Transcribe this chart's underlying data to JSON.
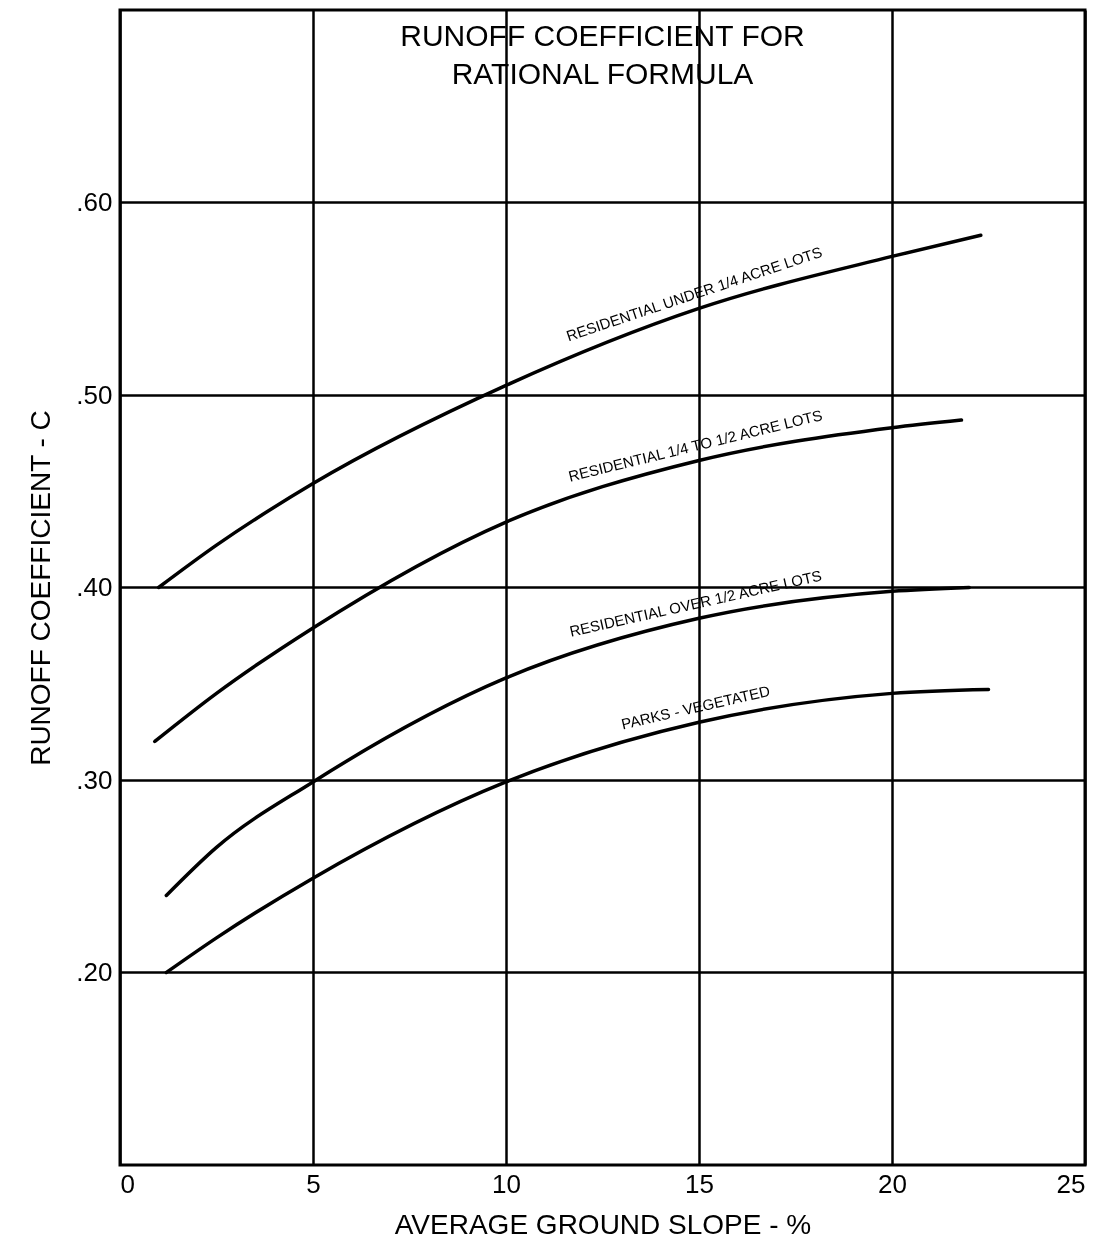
{
  "chart_data": {
    "type": "line",
    "title": [
      "RUNOFF COEFFICIENT FOR",
      "RATIONAL FORMULA"
    ],
    "xlabel": "AVERAGE GROUND SLOPE - %",
    "ylabel": "RUNOFF COEFFICIENT - C",
    "series": [
      {
        "name": "RESIDENTIAL   UNDER 1/4 ACRE LOTS",
        "color": "#000000",
        "x": [
          1,
          2.5,
          5,
          10,
          15,
          20,
          22.3
        ],
        "values": [
          0.4,
          0.422,
          0.454,
          0.505,
          0.545,
          0.572,
          0.583
        ]
      },
      {
        "name": "RESIDENTIAL   1/4 TO 1/2 ACRE LOTS",
        "color": "#000000",
        "x": [
          0.9,
          2.5,
          5,
          10,
          15,
          20,
          21.8
        ],
        "values": [
          0.32,
          0.345,
          0.379,
          0.434,
          0.466,
          0.483,
          0.487
        ]
      },
      {
        "name": "RESIDENTIAL   OVER 1/2 ACRE LOTS",
        "color": "#000000",
        "x": [
          1.2,
          2.5,
          5,
          10,
          15,
          20,
          22
        ],
        "values": [
          0.24,
          0.265,
          0.299,
          0.353,
          0.384,
          0.398,
          0.4
        ]
      },
      {
        "name": "PARKS - VEGETATED",
        "color": "#000000",
        "x": [
          1.2,
          2.5,
          5,
          10,
          15,
          20,
          22.5
        ],
        "values": [
          0.2,
          0.218,
          0.249,
          0.299,
          0.33,
          0.345,
          0.347
        ]
      }
    ],
    "xlim": [
      0,
      25
    ],
    "xticks": [
      0,
      5,
      10,
      15,
      20,
      25
    ],
    "ylim": [
      0.1,
      0.7
    ],
    "yticks": [
      {
        "value": 0.2,
        "label": ".20"
      },
      {
        "value": 0.3,
        "label": ".30"
      },
      {
        "value": 0.4,
        "label": ".40"
      },
      {
        "value": 0.5,
        "label": ".50"
      },
      {
        "value": 0.6,
        "label": ".60"
      }
    ],
    "grid": true,
    "legend": false,
    "marker": "none",
    "line_style": "solid"
  }
}
